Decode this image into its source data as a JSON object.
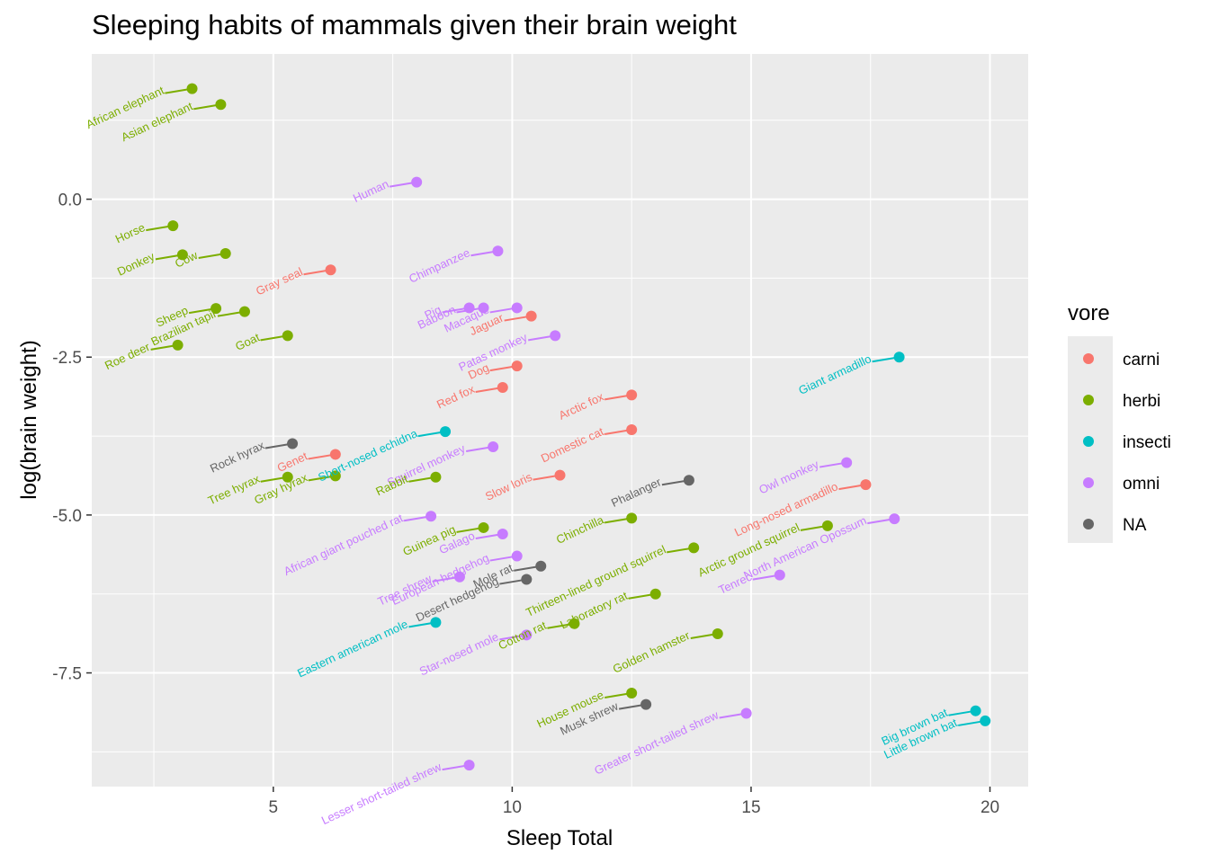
{
  "chart_data": {
    "type": "scatter",
    "title": "Sleeping habits of mammals given their brain weight",
    "xlabel": "Sleep Total",
    "ylabel": "log(brain weight)",
    "xlim": [
      1.2,
      20.8
    ],
    "ylim": [
      -9.3,
      2.3
    ],
    "x_ticks": [
      5,
      10,
      15,
      20
    ],
    "y_ticks": [
      0.0,
      -2.5,
      -5.0,
      -7.5
    ],
    "x_tick_labels": [
      "5",
      "10",
      "15",
      "20"
    ],
    "y_tick_labels": [
      "0.0",
      "-2.5",
      "-5.0",
      "-7.5"
    ],
    "grid": true,
    "legend": {
      "title": "vore",
      "placement": "right",
      "entries": [
        {
          "key": "carni",
          "label": "carni",
          "color": "#F8766D"
        },
        {
          "key": "herbi",
          "label": "herbi",
          "color": "#7CAE00"
        },
        {
          "key": "insecti",
          "label": "insecti",
          "color": "#00BFC4"
        },
        {
          "key": "omni",
          "label": "omni",
          "color": "#C77CFF"
        },
        {
          "key": "NA",
          "label": "NA",
          "color": "#666666"
        }
      ]
    },
    "points": [
      {
        "name": "African elephant",
        "x": 3.3,
        "y": 1.75,
        "vore": "herbi"
      },
      {
        "name": "Asian elephant",
        "x": 3.9,
        "y": 1.5,
        "vore": "herbi"
      },
      {
        "name": "Human",
        "x": 8.0,
        "y": 0.27,
        "vore": "omni"
      },
      {
        "name": "Horse",
        "x": 2.9,
        "y": -0.42,
        "vore": "herbi"
      },
      {
        "name": "Donkey",
        "x": 3.1,
        "y": -0.88,
        "vore": "herbi"
      },
      {
        "name": "Cow",
        "x": 4.0,
        "y": -0.86,
        "vore": "herbi"
      },
      {
        "name": "Gray seal",
        "x": 6.2,
        "y": -1.12,
        "vore": "carni"
      },
      {
        "name": "Chimpanzee",
        "x": 9.7,
        "y": -0.82,
        "vore": "omni"
      },
      {
        "name": "Sheep",
        "x": 3.8,
        "y": -1.73,
        "vore": "herbi"
      },
      {
        "name": "Brazilian tapir",
        "x": 4.4,
        "y": -1.78,
        "vore": "herbi"
      },
      {
        "name": "Pig",
        "x": 9.1,
        "y": -1.72,
        "vore": "omni"
      },
      {
        "name": "Macaque",
        "x": 10.1,
        "y": -1.72,
        "vore": "omni"
      },
      {
        "name": "Baboon",
        "x": 9.4,
        "y": -1.72,
        "vore": "omni"
      },
      {
        "name": "Jaguar",
        "x": 10.4,
        "y": -1.85,
        "vore": "carni"
      },
      {
        "name": "Roe deer",
        "x": 3.0,
        "y": -2.31,
        "vore": "herbi"
      },
      {
        "name": "Goat",
        "x": 5.3,
        "y": -2.16,
        "vore": "herbi"
      },
      {
        "name": "Patas monkey",
        "x": 10.9,
        "y": -2.16,
        "vore": "omni"
      },
      {
        "name": "Giant armadillo",
        "x": 18.1,
        "y": -2.5,
        "vore": "insecti"
      },
      {
        "name": "Dog",
        "x": 10.1,
        "y": -2.64,
        "vore": "carni"
      },
      {
        "name": "Red fox",
        "x": 9.8,
        "y": -2.98,
        "vore": "carni"
      },
      {
        "name": "Arctic fox",
        "x": 12.5,
        "y": -3.1,
        "vore": "carni"
      },
      {
        "name": "Short-nosed echidna",
        "x": 8.6,
        "y": -3.68,
        "vore": "insecti"
      },
      {
        "name": "Domestic cat",
        "x": 12.5,
        "y": -3.65,
        "vore": "carni"
      },
      {
        "name": "Rock hyrax",
        "x": 5.4,
        "y": -3.87,
        "vore": "NA"
      },
      {
        "name": "Squirrel monkey",
        "x": 9.6,
        "y": -3.92,
        "vore": "omni"
      },
      {
        "name": "Genet",
        "x": 6.3,
        "y": -4.04,
        "vore": "carni"
      },
      {
        "name": "Owl monkey",
        "x": 17.0,
        "y": -4.17,
        "vore": "omni"
      },
      {
        "name": "Tree hyrax",
        "x": 5.3,
        "y": -4.4,
        "vore": "herbi"
      },
      {
        "name": "Gray hyrax",
        "x": 6.3,
        "y": -4.38,
        "vore": "herbi"
      },
      {
        "name": "Rabbit",
        "x": 8.4,
        "y": -4.4,
        "vore": "herbi"
      },
      {
        "name": "Slow loris",
        "x": 11.0,
        "y": -4.37,
        "vore": "carni"
      },
      {
        "name": "Phalanger",
        "x": 13.7,
        "y": -4.45,
        "vore": "NA"
      },
      {
        "name": "Long-nosed armadillo",
        "x": 17.4,
        "y": -4.52,
        "vore": "carni"
      },
      {
        "name": "African giant pouched rat",
        "x": 8.3,
        "y": -5.02,
        "vore": "omni"
      },
      {
        "name": "Chinchilla",
        "x": 12.5,
        "y": -5.05,
        "vore": "herbi"
      },
      {
        "name": "North American Opossum",
        "x": 18.0,
        "y": -5.06,
        "vore": "omni"
      },
      {
        "name": "Guinea pig",
        "x": 9.4,
        "y": -5.2,
        "vore": "herbi"
      },
      {
        "name": "Arctic ground squirrel",
        "x": 16.6,
        "y": -5.17,
        "vore": "herbi"
      },
      {
        "name": "Galago",
        "x": 9.8,
        "y": -5.3,
        "vore": "omni"
      },
      {
        "name": "Thirteen-lined ground squirrel",
        "x": 13.8,
        "y": -5.52,
        "vore": "herbi"
      },
      {
        "name": "European hedgehog",
        "x": 10.1,
        "y": -5.65,
        "vore": "omni"
      },
      {
        "name": "Mole rat",
        "x": 10.6,
        "y": -5.81,
        "vore": "NA"
      },
      {
        "name": "Tenrec",
        "x": 15.6,
        "y": -5.95,
        "vore": "omni"
      },
      {
        "name": "Tree shrew",
        "x": 8.9,
        "y": -5.98,
        "vore": "omni"
      },
      {
        "name": "Desert hedgehog",
        "x": 10.3,
        "y": -6.02,
        "vore": "NA"
      },
      {
        "name": "Laboratory rat",
        "x": 13.0,
        "y": -6.25,
        "vore": "herbi"
      },
      {
        "name": "Eastern american mole",
        "x": 8.4,
        "y": -6.7,
        "vore": "insecti"
      },
      {
        "name": "Cotton rat",
        "x": 11.3,
        "y": -6.72,
        "vore": "herbi"
      },
      {
        "name": "Golden hamster",
        "x": 14.3,
        "y": -6.88,
        "vore": "herbi"
      },
      {
        "name": "Star-nosed mole",
        "x": 10.3,
        "y": -6.9,
        "vore": "omni"
      },
      {
        "name": "House mouse",
        "x": 12.5,
        "y": -7.82,
        "vore": "herbi"
      },
      {
        "name": "Musk shrew",
        "x": 12.8,
        "y": -8.0,
        "vore": "NA"
      },
      {
        "name": "Big brown bat",
        "x": 19.7,
        "y": -8.1,
        "vore": "insecti"
      },
      {
        "name": "Greater short-tailed shrew",
        "x": 14.9,
        "y": -8.14,
        "vore": "omni"
      },
      {
        "name": "Little brown bat",
        "x": 19.9,
        "y": -8.26,
        "vore": "insecti"
      },
      {
        "name": "Lesser short-tailed shrew",
        "x": 9.1,
        "y": -8.96,
        "vore": "omni"
      }
    ]
  }
}
